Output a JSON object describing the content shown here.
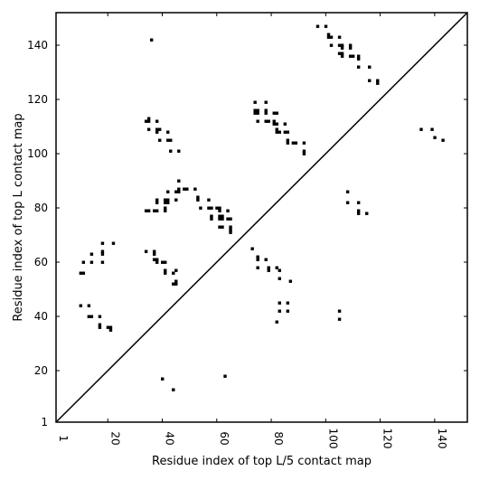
{
  "chart_data": {
    "type": "scatter",
    "title": "",
    "xlabel": "Residue index of top L/5 contact map",
    "ylabel": "Residue index of top L contact map",
    "xlim": [
      1,
      152
    ],
    "ylim": [
      1,
      152
    ],
    "x_ticks": [
      {
        "value": 1,
        "label": "1"
      },
      {
        "value": 20,
        "label": "20"
      },
      {
        "value": 40,
        "label": "40"
      },
      {
        "value": 60,
        "label": "60"
      },
      {
        "value": 80,
        "label": "80"
      },
      {
        "value": 100,
        "label": "100"
      },
      {
        "value": 120,
        "label": "120"
      },
      {
        "value": 140,
        "label": "140"
      }
    ],
    "y_ticks": [
      {
        "value": 1,
        "label": "1"
      },
      {
        "value": 20,
        "label": "20"
      },
      {
        "value": 40,
        "label": "40"
      },
      {
        "value": 60,
        "label": "60"
      },
      {
        "value": 80,
        "label": "80"
      },
      {
        "value": 100,
        "label": "100"
      },
      {
        "value": 120,
        "label": "120"
      },
      {
        "value": 140,
        "label": "140"
      }
    ],
    "grid": false,
    "diagonal": true,
    "color": "#000000",
    "lower_triangle_points": [
      [
        10,
        56
      ],
      [
        11,
        56
      ],
      [
        11,
        60
      ],
      [
        10,
        44
      ],
      [
        13,
        44
      ],
      [
        13,
        40
      ],
      [
        14,
        40
      ],
      [
        14,
        60
      ],
      [
        14,
        63
      ],
      [
        17,
        40
      ],
      [
        17,
        37
      ],
      [
        17,
        36
      ],
      [
        18,
        60
      ],
      [
        18,
        63
      ],
      [
        18,
        64
      ],
      [
        18,
        67
      ],
      [
        20,
        36
      ],
      [
        21,
        36
      ],
      [
        21,
        35
      ],
      [
        22,
        67
      ],
      [
        34,
        64
      ],
      [
        37,
        64
      ],
      [
        37,
        63
      ],
      [
        37,
        61
      ],
      [
        38,
        61
      ],
      [
        38,
        60
      ],
      [
        40,
        60
      ],
      [
        41,
        60
      ],
      [
        41,
        57
      ],
      [
        41,
        56
      ],
      [
        44,
        56
      ],
      [
        45,
        57
      ],
      [
        45,
        53
      ],
      [
        44,
        52
      ],
      [
        45,
        52
      ],
      [
        34,
        79
      ],
      [
        35,
        79
      ],
      [
        37,
        79
      ],
      [
        38,
        79
      ],
      [
        38,
        82
      ],
      [
        38,
        83
      ],
      [
        41,
        79
      ],
      [
        41,
        80
      ],
      [
        41,
        82
      ],
      [
        41,
        83
      ],
      [
        42,
        82
      ],
      [
        42,
        83
      ],
      [
        42,
        86
      ],
      [
        45,
        83
      ],
      [
        45,
        86
      ],
      [
        46,
        86
      ],
      [
        46,
        87
      ],
      [
        46,
        90
      ],
      [
        48,
        87
      ],
      [
        49,
        87
      ],
      [
        52,
        87
      ],
      [
        53,
        83
      ],
      [
        53,
        84
      ],
      [
        54,
        80
      ],
      [
        57,
        83
      ],
      [
        57,
        80
      ],
      [
        58,
        80
      ],
      [
        58,
        77
      ],
      [
        58,
        76
      ],
      [
        60,
        80
      ],
      [
        61,
        80
      ],
      [
        61,
        79
      ],
      [
        61,
        77
      ],
      [
        61,
        76
      ],
      [
        62,
        77
      ],
      [
        62,
        76
      ],
      [
        61,
        73
      ],
      [
        62,
        73
      ],
      [
        64,
        79
      ],
      [
        64,
        76
      ],
      [
        65,
        76
      ],
      [
        65,
        73
      ],
      [
        65,
        72
      ],
      [
        65,
        71
      ],
      [
        73,
        65
      ],
      [
        75,
        62
      ],
      [
        75,
        61
      ],
      [
        75,
        58
      ],
      [
        78,
        61
      ],
      [
        79,
        58
      ],
      [
        79,
        57
      ],
      [
        82,
        58
      ],
      [
        83,
        57
      ],
      [
        83,
        54
      ],
      [
        87,
        53
      ],
      [
        83,
        45
      ],
      [
        86,
        45
      ],
      [
        83,
        42
      ],
      [
        86,
        42
      ],
      [
        82,
        38
      ],
      [
        105,
        42
      ],
      [
        105,
        39
      ],
      [
        40,
        17
      ],
      [
        44,
        13
      ],
      [
        63,
        18
      ],
      [
        108,
        86
      ],
      [
        108,
        82
      ],
      [
        112,
        82
      ],
      [
        112,
        79
      ],
      [
        112,
        78
      ],
      [
        115,
        78
      ]
    ],
    "upper_triangle_points": [
      [
        36,
        142
      ],
      [
        34,
        112
      ],
      [
        35,
        112
      ],
      [
        35,
        113
      ],
      [
        35,
        109
      ],
      [
        38,
        112
      ],
      [
        38,
        109
      ],
      [
        38,
        108
      ],
      [
        39,
        109
      ],
      [
        39,
        105
      ],
      [
        42,
        108
      ],
      [
        42,
        105
      ],
      [
        43,
        105
      ],
      [
        43,
        101
      ],
      [
        46,
        101
      ],
      [
        74,
        119
      ],
      [
        74,
        116
      ],
      [
        74,
        115
      ],
      [
        75,
        116
      ],
      [
        75,
        115
      ],
      [
        75,
        112
      ],
      [
        78,
        119
      ],
      [
        78,
        116
      ],
      [
        78,
        115
      ],
      [
        78,
        112
      ],
      [
        79,
        112
      ],
      [
        81,
        115
      ],
      [
        81,
        112
      ],
      [
        82,
        115
      ],
      [
        81,
        111
      ],
      [
        82,
        111
      ],
      [
        82,
        109
      ],
      [
        82,
        108
      ],
      [
        83,
        108
      ],
      [
        85,
        111
      ],
      [
        85,
        108
      ],
      [
        86,
        108
      ],
      [
        86,
        105
      ],
      [
        86,
        104
      ],
      [
        88,
        104
      ],
      [
        89,
        104
      ],
      [
        92,
        104
      ],
      [
        92,
        101
      ],
      [
        92,
        100
      ],
      [
        97,
        147
      ],
      [
        100,
        147
      ],
      [
        101,
        144
      ],
      [
        101,
        143
      ],
      [
        102,
        143
      ],
      [
        105,
        143
      ],
      [
        102,
        140
      ],
      [
        105,
        140
      ],
      [
        106,
        140
      ],
      [
        106,
        139
      ],
      [
        109,
        140
      ],
      [
        105,
        137
      ],
      [
        106,
        137
      ],
      [
        106,
        136
      ],
      [
        109,
        139
      ],
      [
        109,
        136
      ],
      [
        110,
        136
      ],
      [
        112,
        136
      ],
      [
        112,
        135
      ],
      [
        112,
        132
      ],
      [
        116,
        132
      ],
      [
        116,
        127
      ],
      [
        119,
        127
      ],
      [
        119,
        126
      ],
      [
        135,
        109
      ],
      [
        139,
        109
      ],
      [
        140,
        106
      ],
      [
        143,
        105
      ]
    ]
  }
}
